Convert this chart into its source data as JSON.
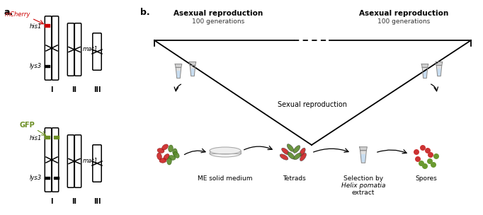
{
  "fig_width": 6.82,
  "fig_height": 3.04,
  "bg_color": "#ffffff",
  "panel_a_label": "a.",
  "panel_b_label": "b.",
  "label_fontsize": 9,
  "mcherry_color": "#cc0000",
  "gfp_color": "#6b8e23",
  "mcherry_label": "mCherry",
  "gfp_label": "GFP",
  "his1_label": "his1",
  "lys3_label": "lys3",
  "mat1_label": "mat1",
  "roman_I": "I",
  "roman_II": "II",
  "roman_III": "III",
  "asexual_title": "Asexual reproduction",
  "asexual_sub": "100 generations",
  "sexual_label": "Sexual reproduction",
  "me_label": "ME solid medium",
  "tetrads_label": "Tetrads",
  "selection_line1": "Selection by",
  "selection_line2": "Helix pomatia",
  "selection_line3": "extract",
  "spores_label": "Spores",
  "red_color": "#cc2222",
  "green_color": "#5a8a2a",
  "spore_red": "#cc3333",
  "spore_green": "#6a9a30"
}
